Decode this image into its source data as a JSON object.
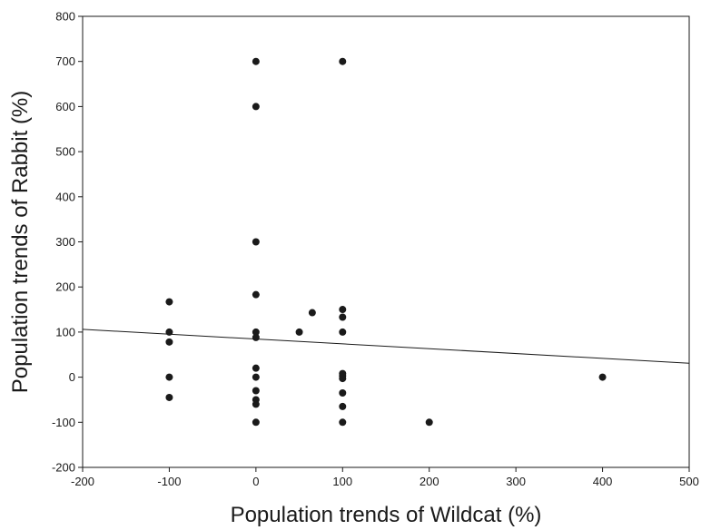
{
  "chart_data": {
    "type": "scatter",
    "title": "",
    "xlabel": "Population trends of Wildcat (%)",
    "ylabel": "Population trends of Rabbit (%)",
    "xlim": [
      -200,
      500
    ],
    "ylim": [
      -200,
      800
    ],
    "xticks": [
      -200,
      -100,
      0,
      100,
      200,
      300,
      400,
      500
    ],
    "yticks": [
      -200,
      -100,
      0,
      100,
      200,
      300,
      400,
      500,
      600,
      700,
      800
    ],
    "xtick_labels": [
      "-200",
      "-100",
      "0",
      "100",
      "200",
      "300",
      "400",
      "500"
    ],
    "ytick_labels": [
      "-200",
      "-100",
      "0",
      "100",
      "200",
      "300",
      "400",
      "500",
      "600",
      "700",
      "800"
    ],
    "grid": false,
    "legend": "none",
    "marker_color": "#1a1a1a",
    "line_color": "#1a1a1a",
    "series": [
      {
        "points": [
          {
            "x": -100,
            "y": 167
          },
          {
            "x": -100,
            "y": 100
          },
          {
            "x": -100,
            "y": 78
          },
          {
            "x": -100,
            "y": 0
          },
          {
            "x": -100,
            "y": -45
          },
          {
            "x": 0,
            "y": 700
          },
          {
            "x": 0,
            "y": 600
          },
          {
            "x": 0,
            "y": 300
          },
          {
            "x": 0,
            "y": 183
          },
          {
            "x": 0,
            "y": 100
          },
          {
            "x": 0,
            "y": 88
          },
          {
            "x": 0,
            "y": 20
          },
          {
            "x": 0,
            "y": 0
          },
          {
            "x": 0,
            "y": -30
          },
          {
            "x": 0,
            "y": -50
          },
          {
            "x": 0,
            "y": -60
          },
          {
            "x": 0,
            "y": -100
          },
          {
            "x": 50,
            "y": 100
          },
          {
            "x": 65,
            "y": 143
          },
          {
            "x": 100,
            "y": 700
          },
          {
            "x": 100,
            "y": 150
          },
          {
            "x": 100,
            "y": 133
          },
          {
            "x": 100,
            "y": 100
          },
          {
            "x": 100,
            "y": 8
          },
          {
            "x": 100,
            "y": 3
          },
          {
            "x": 100,
            "y": -3
          },
          {
            "x": 100,
            "y": -35
          },
          {
            "x": 100,
            "y": -65
          },
          {
            "x": 100,
            "y": -100
          },
          {
            "x": 200,
            "y": -100
          },
          {
            "x": 400,
            "y": 0
          }
        ]
      }
    ],
    "trendline": {
      "x": [
        -200,
        500
      ],
      "y": [
        106,
        31
      ]
    }
  }
}
